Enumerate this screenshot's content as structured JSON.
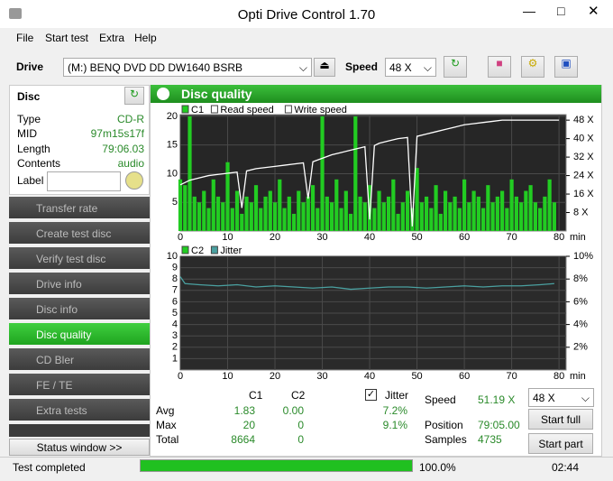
{
  "window": {
    "title": "Opti Drive Control 1.70"
  },
  "menu": [
    "File",
    "Start test",
    "Extra",
    "Help"
  ],
  "toolbar": {
    "drive_label": "Drive",
    "drive": "(M:)   BENQ DVD DD DW1640 BSRB",
    "speed_label": "Speed",
    "speed": "48 X"
  },
  "disc": {
    "title": "Disc",
    "rows": [
      [
        "Type",
        "CD-R"
      ],
      [
        "MID",
        "97m15s17f"
      ],
      [
        "Length",
        "79:06.03"
      ],
      [
        "Contents",
        "audio"
      ]
    ],
    "label": "Label"
  },
  "nav": [
    "Transfer rate",
    "Create test disc",
    "Verify test disc",
    "Drive info",
    "Disc info",
    "Disc quality",
    "CD Bler",
    "FE / TE",
    "Extra tests"
  ],
  "status_window": "Status window >>",
  "panel_title": "Disc quality",
  "charts": [
    {
      "type": "bar",
      "x_label": "min",
      "xlim": [
        0,
        81.5
      ],
      "xticks": [
        0,
        10,
        20,
        30,
        40,
        50,
        60,
        70,
        80
      ],
      "ylim": [
        0,
        20.3
      ],
      "yticks": [
        5,
        10,
        15,
        20
      ],
      "y2lim": [
        0,
        50.4
      ],
      "y2ticks": [
        {
          "value": 8,
          "label": "8 X"
        },
        {
          "value": 16,
          "label": "16 X"
        },
        {
          "value": 24,
          "label": "24 X"
        },
        {
          "value": 32,
          "label": "32 X"
        },
        {
          "value": 40,
          "label": "40 X"
        },
        {
          "value": 48,
          "label": "48 X"
        }
      ],
      "grid": true,
      "series": [
        {
          "name": "C1",
          "type": "bar",
          "color": "#22cc22",
          "x": [
            0,
            1,
            2,
            3,
            4,
            5,
            6,
            7,
            8,
            9,
            10,
            11,
            12,
            13,
            14,
            15,
            16,
            17,
            18,
            19,
            20,
            21,
            22,
            23,
            24,
            25,
            26,
            27,
            28,
            29,
            30,
            31,
            32,
            33,
            34,
            35,
            36,
            37,
            38,
            39,
            40,
            41,
            42,
            43,
            44,
            45,
            46,
            47,
            48,
            49,
            50,
            51,
            52,
            53,
            54,
            55,
            56,
            57,
            58,
            59,
            60,
            61,
            62,
            63,
            64,
            65,
            66,
            67,
            68,
            69,
            70,
            71,
            72,
            73,
            74,
            75,
            76,
            77,
            78,
            79
          ],
          "values": [
            9,
            8,
            20,
            6,
            5,
            7,
            4,
            9,
            6,
            5,
            12,
            4,
            7,
            3,
            6,
            5,
            8,
            4,
            6,
            7,
            5,
            9,
            4,
            6,
            3,
            7,
            5,
            6,
            8,
            4,
            20,
            6,
            5,
            9,
            4,
            7,
            3,
            20,
            6,
            5,
            8,
            4,
            7,
            5,
            6,
            9,
            3,
            5,
            7,
            4,
            11,
            5,
            6,
            4,
            8,
            3,
            7,
            5,
            6,
            4,
            9,
            5,
            7,
            6,
            4,
            8,
            5,
            6,
            7,
            4,
            9,
            6,
            5,
            7,
            8,
            5,
            4,
            6,
            9,
            5
          ]
        },
        {
          "name": "Read speed",
          "type": "line",
          "axis": "y2",
          "color": "#ffffff",
          "x": [
            0,
            2,
            4,
            6,
            8,
            10,
            12,
            13,
            14,
            16,
            18,
            20,
            22,
            24,
            26,
            27,
            28,
            30,
            32,
            34,
            36,
            38,
            39,
            40,
            41,
            42,
            44,
            46,
            48,
            49,
            50,
            52,
            54,
            56,
            58,
            60,
            62,
            64,
            66,
            68,
            70,
            72,
            74,
            76,
            78,
            80
          ],
          "values": [
            20,
            22,
            23,
            24,
            24.5,
            25,
            25.5,
            10,
            26,
            27,
            27.5,
            28,
            28.5,
            29,
            29.5,
            14,
            30,
            31.5,
            33,
            34,
            35,
            36,
            36.5,
            5,
            37,
            38,
            39,
            40,
            40.5,
            2,
            41,
            42,
            43,
            44,
            45,
            46,
            46.5,
            47,
            47.5,
            48,
            48,
            48,
            48,
            48,
            48,
            48
          ]
        },
        {
          "name": "Write speed",
          "type": "line",
          "axis": "y2",
          "color": "#ffffff",
          "x": [],
          "values": []
        }
      ]
    },
    {
      "type": "bar",
      "xlim": [
        0,
        81.5
      ],
      "xticks": [
        0,
        10,
        20,
        30,
        40,
        50,
        60,
        70,
        80
      ],
      "ylim": [
        0,
        10
      ],
      "yticks": [
        1,
        2,
        3,
        4,
        5,
        6,
        7,
        8,
        9,
        10
      ],
      "y2lim": [
        0,
        10
      ],
      "y2ticks": [
        {
          "value": 2,
          "label": "2%"
        },
        {
          "value": 4,
          "label": "4%"
        },
        {
          "value": 6,
          "label": "6%"
        },
        {
          "value": 8,
          "label": "8%"
        },
        {
          "value": 10,
          "label": "10%"
        }
      ],
      "grid": true,
      "x_label": "min",
      "series": [
        {
          "name": "C2",
          "type": "bar",
          "color": "#22cc22",
          "x": [
            0,
            80
          ],
          "values": [
            0,
            0
          ]
        },
        {
          "name": "Jitter",
          "type": "line",
          "axis": "y2",
          "color": "#4aa0a0",
          "x": [
            0,
            1,
            4,
            8,
            12,
            16,
            20,
            24,
            28,
            32,
            36,
            40,
            44,
            48,
            52,
            56,
            60,
            64,
            68,
            72,
            76,
            79
          ],
          "values": [
            8.2,
            7.6,
            7.5,
            7.4,
            7.5,
            7.3,
            7.4,
            7.3,
            7.2,
            7.3,
            7.1,
            7.2,
            7.3,
            7.3,
            7.2,
            7.3,
            7.4,
            7.3,
            7.4,
            7.4,
            7.5,
            7.6
          ]
        }
      ]
    }
  ],
  "stats": {
    "headers": [
      "C1",
      "C2",
      "Jitter"
    ],
    "rows": [
      [
        "Avg",
        "1.83",
        "0.00",
        "7.2%"
      ],
      [
        "Max",
        "20",
        "0",
        "9.1%"
      ],
      [
        "Total",
        "8664",
        "0"
      ]
    ],
    "speed_label": "Speed",
    "speed": "51.19 X",
    "speed_select": "48 X",
    "position_label": "Position",
    "position": "79:05.00",
    "samples_label": "Samples",
    "samples": "4735",
    "start_full": "Start full",
    "start_part": "Start part"
  },
  "status": {
    "text": "Test completed",
    "progress": "100.0%",
    "time": "02:44"
  }
}
